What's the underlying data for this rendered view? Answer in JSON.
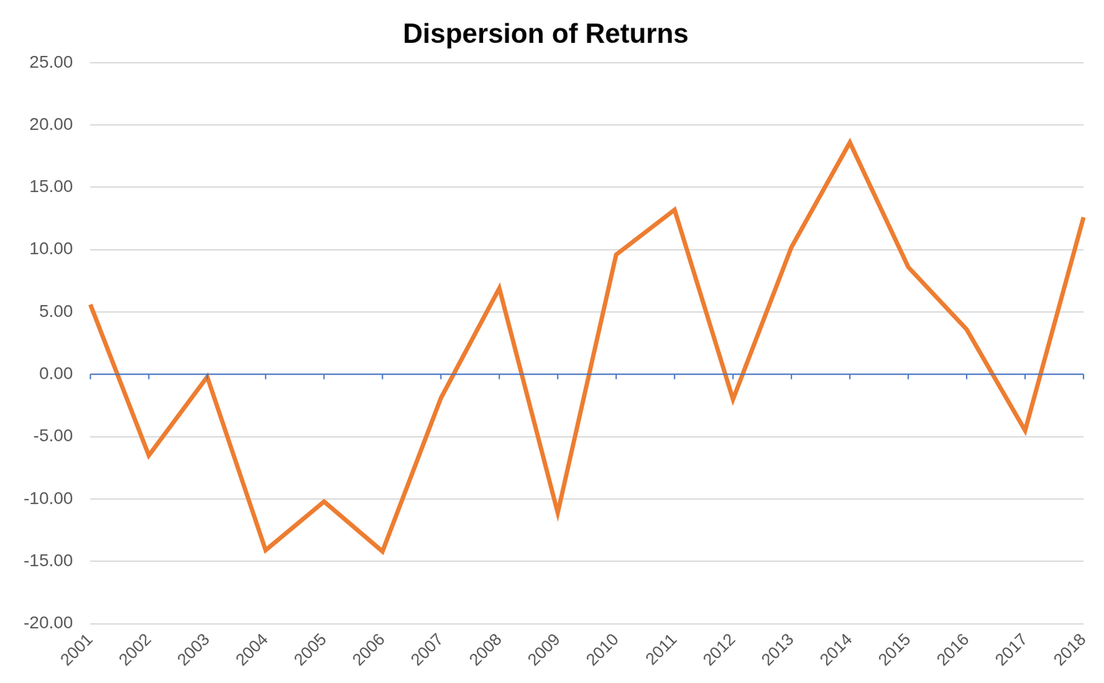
{
  "chart_data": {
    "type": "line",
    "title": "Dispersion of Returns",
    "categories": [
      "2001",
      "2002",
      "2003",
      "2004",
      "2005",
      "2006",
      "2007",
      "2008",
      "2009",
      "2010",
      "2011",
      "2012",
      "2013",
      "2014",
      "2015",
      "2016",
      "2017",
      "2018"
    ],
    "values": [
      5.6,
      -6.5,
      -0.2,
      -14.1,
      -10.2,
      -14.2,
      -1.9,
      6.9,
      -11.1,
      9.6,
      13.2,
      -2.0,
      10.2,
      18.6,
      8.6,
      3.6,
      -4.5,
      12.6
    ],
    "color": "#ed7d31",
    "ylim": [
      -20,
      25
    ],
    "yticks": [
      {
        "value": -20,
        "label": "-20.00"
      },
      {
        "value": -15,
        "label": "-15.00"
      },
      {
        "value": -10,
        "label": "-10.00"
      },
      {
        "value": -5,
        "label": "-5.00"
      },
      {
        "value": 0,
        "label": "0.00"
      },
      {
        "value": 5,
        "label": "5.00"
      },
      {
        "value": 10,
        "label": "10.00"
      },
      {
        "value": 15,
        "label": "15.00"
      },
      {
        "value": 20,
        "label": "20.00"
      },
      {
        "value": 25,
        "label": "25.00"
      }
    ],
    "grid": true
  }
}
